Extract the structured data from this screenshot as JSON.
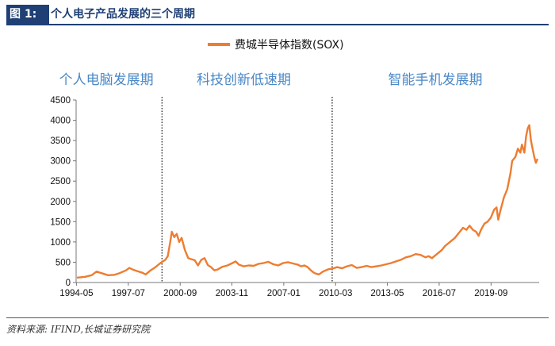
{
  "header": {
    "figure_label": "图 1:",
    "title": "个人电子产品发展的三个周期"
  },
  "source": "资料来源: IFIND,长城证券研究院",
  "chart_data": {
    "type": "line",
    "legend": {
      "label": "费城半导体指数(SOX)",
      "placement": "top-center"
    },
    "ylim": [
      0,
      4500
    ],
    "y_ticks": [
      0,
      500,
      1000,
      1500,
      2000,
      2500,
      3000,
      3500,
      4000,
      4500
    ],
    "x_range": [
      1994.35,
      2022.65
    ],
    "x_ticks": [
      {
        "label": "1994-05",
        "t": 1994.37
      },
      {
        "label": "1997-07",
        "t": 1997.54
      },
      {
        "label": "2000-09",
        "t": 2000.71
      },
      {
        "label": "2003-11",
        "t": 2003.87
      },
      {
        "label": "2007-01",
        "t": 2007.04
      },
      {
        "label": "2010-03",
        "t": 2010.21
      },
      {
        "label": "2013-05",
        "t": 2013.37
      },
      {
        "label": "2016-07",
        "t": 2016.54
      },
      {
        "label": "2019-09",
        "t": 2019.71
      }
    ],
    "periods": [
      {
        "label": "个人电脑发展期",
        "start": 1994.35,
        "end": 1999.6
      },
      {
        "label": "科技创新低速期",
        "start": 1999.6,
        "end": 2010.0
      },
      {
        "label": "智能手机发展期",
        "start": 2010.0,
        "end": 2022.65
      }
    ],
    "dividers": [
      1999.6,
      2010.0
    ],
    "series": [
      {
        "name": "费城半导体指数(SOX)",
        "color": "#ed7d31",
        "points": [
          [
            1994.4,
            120
          ],
          [
            1994.9,
            140
          ],
          [
            1995.3,
            180
          ],
          [
            1995.6,
            270
          ],
          [
            1995.9,
            230
          ],
          [
            1996.3,
            180
          ],
          [
            1996.7,
            190
          ],
          [
            1997.0,
            230
          ],
          [
            1997.4,
            300
          ],
          [
            1997.6,
            360
          ],
          [
            1997.8,
            320
          ],
          [
            1998.1,
            280
          ],
          [
            1998.4,
            240
          ],
          [
            1998.6,
            200
          ],
          [
            1998.9,
            300
          ],
          [
            1999.2,
            380
          ],
          [
            1999.5,
            480
          ],
          [
            1999.8,
            560
          ],
          [
            1999.95,
            650
          ],
          [
            2000.1,
            1000
          ],
          [
            2000.2,
            1250
          ],
          [
            2000.35,
            1120
          ],
          [
            2000.5,
            1200
          ],
          [
            2000.65,
            1000
          ],
          [
            2000.8,
            1100
          ],
          [
            2001.0,
            800
          ],
          [
            2001.2,
            600
          ],
          [
            2001.35,
            580
          ],
          [
            2001.6,
            550
          ],
          [
            2001.8,
            420
          ],
          [
            2002.0,
            560
          ],
          [
            2002.2,
            600
          ],
          [
            2002.4,
            430
          ],
          [
            2002.6,
            380
          ],
          [
            2002.8,
            300
          ],
          [
            2003.0,
            320
          ],
          [
            2003.3,
            390
          ],
          [
            2003.6,
            420
          ],
          [
            2003.9,
            480
          ],
          [
            2004.1,
            520
          ],
          [
            2004.3,
            440
          ],
          [
            2004.6,
            400
          ],
          [
            2004.9,
            420
          ],
          [
            2005.2,
            410
          ],
          [
            2005.5,
            460
          ],
          [
            2005.8,
            480
          ],
          [
            2006.1,
            510
          ],
          [
            2006.4,
            450
          ],
          [
            2006.7,
            420
          ],
          [
            2007.0,
            480
          ],
          [
            2007.3,
            500
          ],
          [
            2007.6,
            470
          ],
          [
            2007.9,
            440
          ],
          [
            2008.1,
            400
          ],
          [
            2008.3,
            420
          ],
          [
            2008.5,
            380
          ],
          [
            2008.7,
            300
          ],
          [
            2008.85,
            250
          ],
          [
            2009.0,
            220
          ],
          [
            2009.2,
            200
          ],
          [
            2009.4,
            260
          ],
          [
            2009.6,
            300
          ],
          [
            2009.8,
            330
          ],
          [
            2010.0,
            340
          ],
          [
            2010.3,
            380
          ],
          [
            2010.6,
            350
          ],
          [
            2010.9,
            400
          ],
          [
            2011.2,
            430
          ],
          [
            2011.5,
            360
          ],
          [
            2011.8,
            380
          ],
          [
            2012.1,
            410
          ],
          [
            2012.4,
            380
          ],
          [
            2012.7,
            400
          ],
          [
            2013.0,
            420
          ],
          [
            2013.3,
            450
          ],
          [
            2013.6,
            480
          ],
          [
            2013.9,
            520
          ],
          [
            2014.2,
            560
          ],
          [
            2014.5,
            620
          ],
          [
            2014.8,
            650
          ],
          [
            2015.1,
            700
          ],
          [
            2015.4,
            680
          ],
          [
            2015.7,
            620
          ],
          [
            2015.9,
            650
          ],
          [
            2016.1,
            600
          ],
          [
            2016.4,
            700
          ],
          [
            2016.7,
            800
          ],
          [
            2016.9,
            900
          ],
          [
            2017.2,
            1000
          ],
          [
            2017.5,
            1100
          ],
          [
            2017.8,
            1250
          ],
          [
            2018.0,
            1350
          ],
          [
            2018.2,
            1300
          ],
          [
            2018.4,
            1400
          ],
          [
            2018.6,
            1300
          ],
          [
            2018.8,
            1250
          ],
          [
            2018.95,
            1150
          ],
          [
            2019.1,
            1300
          ],
          [
            2019.3,
            1450
          ],
          [
            2019.5,
            1500
          ],
          [
            2019.7,
            1600
          ],
          [
            2019.9,
            1800
          ],
          [
            2020.05,
            1850
          ],
          [
            2020.15,
            1550
          ],
          [
            2020.3,
            1800
          ],
          [
            2020.5,
            2100
          ],
          [
            2020.7,
            2300
          ],
          [
            2020.9,
            2700
          ],
          [
            2021.0,
            3000
          ],
          [
            2021.2,
            3100
          ],
          [
            2021.35,
            3300
          ],
          [
            2021.5,
            3200
          ],
          [
            2021.6,
            3400
          ],
          [
            2021.75,
            3200
          ],
          [
            2021.85,
            3600
          ],
          [
            2021.95,
            3800
          ],
          [
            2022.05,
            3880
          ],
          [
            2022.15,
            3500
          ],
          [
            2022.25,
            3300
          ],
          [
            2022.35,
            3100
          ],
          [
            2022.45,
            2950
          ],
          [
            2022.55,
            3050
          ]
        ]
      }
    ]
  }
}
